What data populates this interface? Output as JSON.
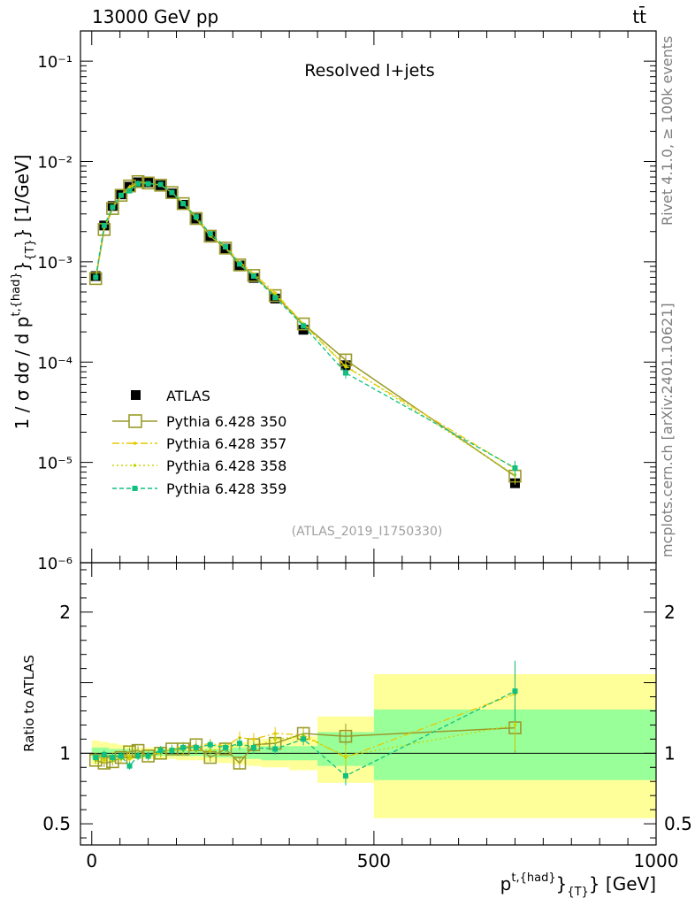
{
  "header": {
    "left": "13000 GeV pp",
    "right": "tt̄"
  },
  "side": {
    "rivet": "Rivet 4.1.0, ≥ 100k events",
    "mcplots": "mcplots.cern.ch [arXiv:2401.10621]"
  },
  "colors": {
    "atlas": "#000000",
    "p350": "#9a9a2a",
    "p357": "#e8c800",
    "p358": "#c8d400",
    "p359": "#10c080",
    "band_outer": "#ffff99",
    "band_inner": "#99ff99"
  },
  "chart_data": [
    {
      "type": "line",
      "title": "Resolved l+jets",
      "watermark": "(ATLAS_2019_I1750330)",
      "ylabel": "1 / σ dσ / d p^{t,{had}}_{T} [1/GeV]",
      "yscale": "log",
      "ylim": [
        1e-06,
        0.2
      ],
      "xlim": [
        -20,
        1000
      ],
      "ytick_labels": [
        "10⁻⁶",
        "10⁻⁵",
        "10⁻⁴",
        "10⁻³",
        "10⁻²",
        "10⁻¹"
      ],
      "legend": [
        "ATLAS",
        "Pythia 6.428 350",
        "Pythia 6.428 357",
        "Pythia 6.428 358",
        "Pythia 6.428 359"
      ],
      "x": [
        7,
        22,
        37,
        52,
        67,
        82,
        100,
        122,
        142,
        162,
        185,
        210,
        237,
        262,
        287,
        325,
        375,
        450,
        750
      ],
      "series": [
        {
          "name": "ATLAS",
          "values": [
            0.00072,
            0.0023,
            0.0036,
            0.0047,
            0.0056,
            0.0062,
            0.0062,
            0.0058,
            0.0048,
            0.0037,
            0.0027,
            0.0018,
            0.00135,
            0.00092,
            0.00069,
            0.00043,
            0.00021,
            9.3e-05,
            6.2e-06
          ]
        },
        {
          "name": "Pythia 6.428 350",
          "values": [
            0.00068,
            0.0021,
            0.0034,
            0.0046,
            0.0057,
            0.0063,
            0.0061,
            0.0058,
            0.0049,
            0.0038,
            0.0027,
            0.0018,
            0.00137,
            0.00093,
            0.00073,
            0.00046,
            0.00024,
            0.000105,
            7.3e-06
          ]
        },
        {
          "name": "Pythia 6.428 357",
          "values": [
            0.0007,
            0.0022,
            0.0035,
            0.0046,
            0.0055,
            0.0061,
            0.006,
            0.0059,
            0.0049,
            0.0039,
            0.0028,
            0.0019,
            0.00142,
            0.001,
            0.00076,
            0.00049,
            0.00024,
            9e-05,
            8.7e-06
          ]
        },
        {
          "name": "Pythia 6.428 358",
          "values": [
            0.00068,
            0.0022,
            0.0034,
            0.0045,
            0.0054,
            0.0061,
            0.0061,
            0.0058,
            0.0049,
            0.0038,
            0.0027,
            0.0018,
            0.00138,
            0.00097,
            0.00072,
            0.00047,
            0.00024,
            9.2e-05,
            7.5e-06
          ]
        },
        {
          "name": "Pythia 6.428 359",
          "values": [
            0.0007,
            0.0023,
            0.0035,
            0.0046,
            0.0051,
            0.006,
            0.006,
            0.0059,
            0.0049,
            0.0038,
            0.0028,
            0.0019,
            0.00141,
            0.00095,
            0.00072,
            0.00044,
            0.00023,
            7.8e-05,
            8.8e-06
          ]
        }
      ]
    },
    {
      "type": "line",
      "ylabel": "Ratio to ATLAS",
      "xlabel": "p^{t,{had}}_{T} [GeV]",
      "ylim": [
        0.35,
        2.35
      ],
      "xlim": [
        -20,
        1000
      ],
      "xtick_labels": [
        "0",
        "500",
        "1000"
      ],
      "ytick_labels": [
        "0.5",
        "1",
        "2"
      ],
      "band_edges": [
        0,
        15,
        30,
        45,
        60,
        75,
        90,
        110,
        135,
        150,
        175,
        200,
        225,
        250,
        275,
        300,
        350,
        400,
        500,
        1000
      ],
      "band_outer": [
        [
          0.92,
          1.09
        ],
        [
          0.93,
          1.08
        ],
        [
          0.94,
          1.07
        ],
        [
          0.95,
          1.06
        ],
        [
          0.95,
          1.05
        ],
        [
          0.96,
          1.04
        ],
        [
          0.96,
          1.04
        ],
        [
          0.96,
          1.04
        ],
        [
          0.96,
          1.04
        ],
        [
          0.95,
          1.05
        ],
        [
          0.95,
          1.05
        ],
        [
          0.94,
          1.06
        ],
        [
          0.93,
          1.07
        ],
        [
          0.92,
          1.08
        ],
        [
          0.91,
          1.09
        ],
        [
          0.9,
          1.1
        ],
        [
          0.88,
          1.12
        ],
        [
          0.79,
          1.26
        ],
        [
          0.54,
          1.56
        ]
      ],
      "band_inner": [
        [
          0.96,
          1.04
        ],
        [
          0.96,
          1.04
        ],
        [
          0.97,
          1.03
        ],
        [
          0.97,
          1.03
        ],
        [
          0.97,
          1.03
        ],
        [
          0.98,
          1.02
        ],
        [
          0.98,
          1.02
        ],
        [
          0.98,
          1.02
        ],
        [
          0.98,
          1.02
        ],
        [
          0.98,
          1.02
        ],
        [
          0.98,
          1.02
        ],
        [
          0.97,
          1.03
        ],
        [
          0.97,
          1.03
        ],
        [
          0.96,
          1.04
        ],
        [
          0.96,
          1.04
        ],
        [
          0.95,
          1.05
        ],
        [
          0.95,
          1.05
        ],
        [
          0.91,
          1.15
        ],
        [
          0.81,
          1.31
        ]
      ],
      "x": [
        7,
        22,
        37,
        52,
        67,
        82,
        100,
        122,
        142,
        162,
        185,
        210,
        237,
        262,
        287,
        325,
        375,
        450,
        750
      ],
      "series": [
        {
          "name": "Pythia 6.428 350",
          "values": [
            0.95,
            0.93,
            0.94,
            0.97,
            1.01,
            1.02,
            0.98,
            1.0,
            1.03,
            1.03,
            1.06,
            0.97,
            1.03,
            0.93,
            1.06,
            1.07,
            1.14,
            1.12,
            1.18
          ]
        },
        {
          "name": "Pythia 6.428 357",
          "values": [
            0.98,
            0.96,
            0.98,
            0.98,
            0.98,
            0.99,
            0.97,
            1.02,
            1.02,
            1.05,
            1.05,
            1.07,
            1.05,
            1.11,
            1.1,
            1.14,
            1.13,
            0.97,
            1.42
          ]
        },
        {
          "name": "Pythia 6.428 358",
          "values": [
            0.95,
            0.95,
            0.95,
            0.96,
            0.96,
            0.98,
            0.99,
            1.0,
            1.02,
            1.02,
            1.02,
            1.02,
            1.03,
            1.06,
            1.04,
            1.1,
            1.12,
            0.98,
            1.2
          ]
        },
        {
          "name": "Pythia 6.428 359",
          "values": [
            0.97,
            0.99,
            0.97,
            0.98,
            0.91,
            0.98,
            0.98,
            1.02,
            1.02,
            1.04,
            1.04,
            1.06,
            1.04,
            1.07,
            1.04,
            1.03,
            1.1,
            0.84,
            1.44
          ]
        }
      ]
    }
  ]
}
